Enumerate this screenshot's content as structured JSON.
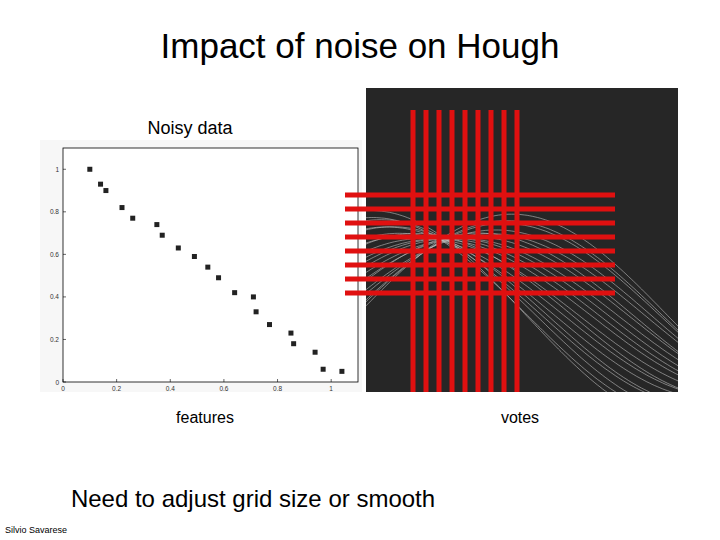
{
  "title": "Impact of noise on Hough",
  "caption": "Need to adjust grid size or smooth",
  "credit": "Silvio Savarese",
  "votes_panel": {
    "label": "votes"
  },
  "chart_data": {
    "type": "scatter",
    "title": "Noisy data",
    "x_label": "features",
    "x": [
      0.1,
      0.14,
      0.16,
      0.22,
      0.26,
      0.35,
      0.37,
      0.43,
      0.49,
      0.54,
      0.58,
      0.64,
      0.71,
      0.72,
      0.77,
      0.85,
      0.86,
      0.94,
      0.97,
      1.04
    ],
    "values": [
      1.0,
      0.93,
      0.9,
      0.82,
      0.77,
      0.74,
      0.69,
      0.63,
      0.59,
      0.54,
      0.49,
      0.42,
      0.4,
      0.33,
      0.27,
      0.23,
      0.18,
      0.14,
      0.06,
      0.05
    ],
    "xlim": [
      0,
      1.1
    ],
    "ylim": [
      0,
      1.1
    ],
    "xticks": [
      0,
      0.2,
      0.4,
      0.6,
      0.8,
      1
    ],
    "yticks": [
      0,
      0.2,
      0.4,
      0.6,
      0.8,
      1
    ],
    "marker": "square",
    "color": "#222222",
    "grid": false
  }
}
